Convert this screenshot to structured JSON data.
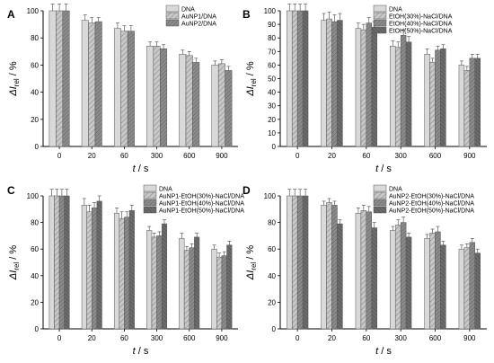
{
  "figure": {
    "panels": [
      "A",
      "B",
      "C",
      "D"
    ]
  },
  "chart_data": [
    {
      "panel": "A",
      "type": "bar",
      "categories": [
        "0",
        "20",
        "60",
        "300",
        "600",
        "900"
      ],
      "xlabel": "t / s",
      "ylabel": "ΔIrel / %",
      "ylim": [
        0,
        100
      ],
      "yticks": [
        0,
        20,
        40,
        60,
        80,
        100
      ],
      "series": [
        {
          "name": "DNA",
          "values": [
            100,
            93,
            87,
            74,
            68,
            60
          ],
          "errors": [
            5,
            4,
            4,
            3,
            3,
            3
          ]
        },
        {
          "name": "AuNP1/DNA",
          "values": [
            100,
            91,
            85,
            74,
            67,
            61
          ],
          "errors": [
            5,
            4,
            4,
            3,
            3,
            3
          ]
        },
        {
          "name": "AuNP2/DNA",
          "values": [
            100,
            92,
            85,
            72,
            62,
            56
          ],
          "errors": [
            5,
            3,
            4,
            3,
            3,
            3
          ]
        }
      ]
    },
    {
      "panel": "B",
      "type": "bar",
      "categories": [
        "0",
        "20",
        "60",
        "300",
        "600",
        "900"
      ],
      "xlabel": "t / s",
      "ylabel": "ΔIrel / %",
      "ylim": [
        0,
        100
      ],
      "yticks": [
        0,
        10,
        20,
        30,
        40,
        50,
        60,
        70,
        80,
        90,
        100
      ],
      "series": [
        {
          "name": "DNA",
          "values": [
            100,
            93,
            87,
            74,
            68,
            60
          ],
          "errors": [
            5,
            5,
            4,
            4,
            4,
            3
          ]
        },
        {
          "name": "EtOH(30%)-NaCl/DNA",
          "values": [
            100,
            94,
            86,
            73,
            62,
            56
          ],
          "errors": [
            5,
            5,
            4,
            4,
            3,
            3
          ]
        },
        {
          "name": "EtOH(40%)-NaCl/DNA",
          "values": [
            100,
            92,
            91,
            82,
            71,
            65
          ],
          "errors": [
            5,
            5,
            4,
            4,
            3,
            3
          ]
        },
        {
          "name": "EtOH(50%)-NaCl/DNA",
          "values": [
            100,
            93,
            88,
            77,
            72,
            65
          ],
          "errors": [
            5,
            5,
            4,
            4,
            3,
            3
          ]
        }
      ]
    },
    {
      "panel": "C",
      "type": "bar",
      "categories": [
        "0",
        "20",
        "60",
        "300",
        "600",
        "900"
      ],
      "xlabel": "t / s",
      "ylabel": "ΔIrel / %",
      "ylim": [
        0,
        100
      ],
      "yticks": [
        0,
        20,
        40,
        60,
        80,
        100
      ],
      "series": [
        {
          "name": "DNA",
          "values": [
            100,
            93,
            87,
            74,
            68,
            60
          ],
          "errors": [
            5,
            5,
            4,
            3,
            4,
            3
          ]
        },
        {
          "name": "AuNP1-EtOH(30%)-NaCl/DNA",
          "values": [
            100,
            88,
            83,
            69,
            59,
            54
          ],
          "errors": [
            5,
            5,
            5,
            3,
            3,
            3
          ]
        },
        {
          "name": "AuNP1-EtOH(40%)-NaCl/DNA",
          "values": [
            100,
            91,
            84,
            70,
            61,
            55
          ],
          "errors": [
            5,
            4,
            4,
            3,
            3,
            3
          ]
        },
        {
          "name": "AuNP1-EtOH(50%)-NaCl/DNA",
          "values": [
            100,
            96,
            89,
            79,
            69,
            63
          ],
          "errors": [
            5,
            4,
            4,
            3,
            3,
            3
          ]
        }
      ]
    },
    {
      "panel": "D",
      "type": "bar",
      "categories": [
        "0",
        "20",
        "60",
        "300",
        "600",
        "900"
      ],
      "xlabel": "t / s",
      "ylabel": "ΔIrel / %",
      "ylim": [
        0,
        100
      ],
      "yticks": [
        0,
        20,
        40,
        60,
        80,
        100
      ],
      "series": [
        {
          "name": "DNA",
          "values": [
            100,
            93,
            87,
            74,
            68,
            60
          ],
          "errors": [
            5,
            3,
            4,
            3,
            3,
            3
          ]
        },
        {
          "name": "AuNP2-EtOH(30%)-NaCl/DNA",
          "values": [
            100,
            95,
            89,
            78,
            72,
            61
          ],
          "errors": [
            5,
            3,
            4,
            4,
            3,
            3
          ]
        },
        {
          "name": "AuNP2-EtOH(40%)-NaCl/DNA",
          "values": [
            100,
            93,
            88,
            80,
            73,
            65
          ],
          "errors": [
            5,
            3,
            4,
            4,
            4,
            3
          ]
        },
        {
          "name": "AuNP2-EtOH(50%)-NaCl/DNA",
          "values": [
            100,
            79,
            76,
            69,
            63,
            57
          ],
          "errors": [
            5,
            3,
            4,
            3,
            3,
            3
          ]
        }
      ]
    }
  ],
  "style": {
    "series_fills": [
      "#dcdcdc",
      "#c2c2c2",
      "#8a8a8a",
      "#6a6a6a"
    ],
    "axis_color": "#000000",
    "bar_border": "#555555"
  }
}
